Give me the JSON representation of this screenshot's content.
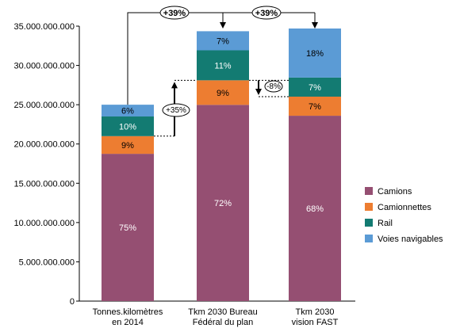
{
  "chart_data": {
    "type": "bar",
    "stacked": true,
    "categories": [
      [
        "Tonnes.kilomètres",
        "en 2014"
      ],
      [
        "Tkm 2030 Bureau",
        "Fédéral du plan"
      ],
      [
        "Tkm 2030",
        "vision FAST"
      ]
    ],
    "totals": [
      25000000000,
      34700000000,
      34700000000
    ],
    "series": [
      {
        "name": "Camions",
        "color": "#954F72",
        "percent_labels": [
          "75%",
          "72%",
          "68%"
        ]
      },
      {
        "name": "Camionnettes",
        "color": "#ED7D31",
        "percent_labels": [
          "9%",
          "9%",
          "7%"
        ]
      },
      {
        "name": "Rail",
        "color": "#137B72",
        "percent_labels": [
          "10%",
          "11%",
          "7%"
        ]
      },
      {
        "name": "Voies navigables",
        "color": "#5B9BD5",
        "percent_labels": [
          "6%",
          "7%",
          "18%"
        ]
      }
    ],
    "shares": [
      [
        0.75,
        0.09,
        0.1,
        0.06
      ],
      [
        0.72,
        0.09,
        0.11,
        0.07
      ],
      [
        0.68,
        0.07,
        0.07,
        0.18
      ]
    ],
    "ylim": [
      0,
      35000000000
    ],
    "yticks": [
      "0",
      "5.000.000.000",
      "10.000.000.000",
      "15.000.000.000",
      "20.000.000.000",
      "25.000.000.000",
      "30.000.000.000",
      "35.000.000.000"
    ],
    "legend_position": "right",
    "grid": false,
    "annotations": {
      "top_left": "+39%",
      "top_right": "+39%",
      "increase_road": "+35%",
      "decrease_road": "-8%"
    }
  }
}
